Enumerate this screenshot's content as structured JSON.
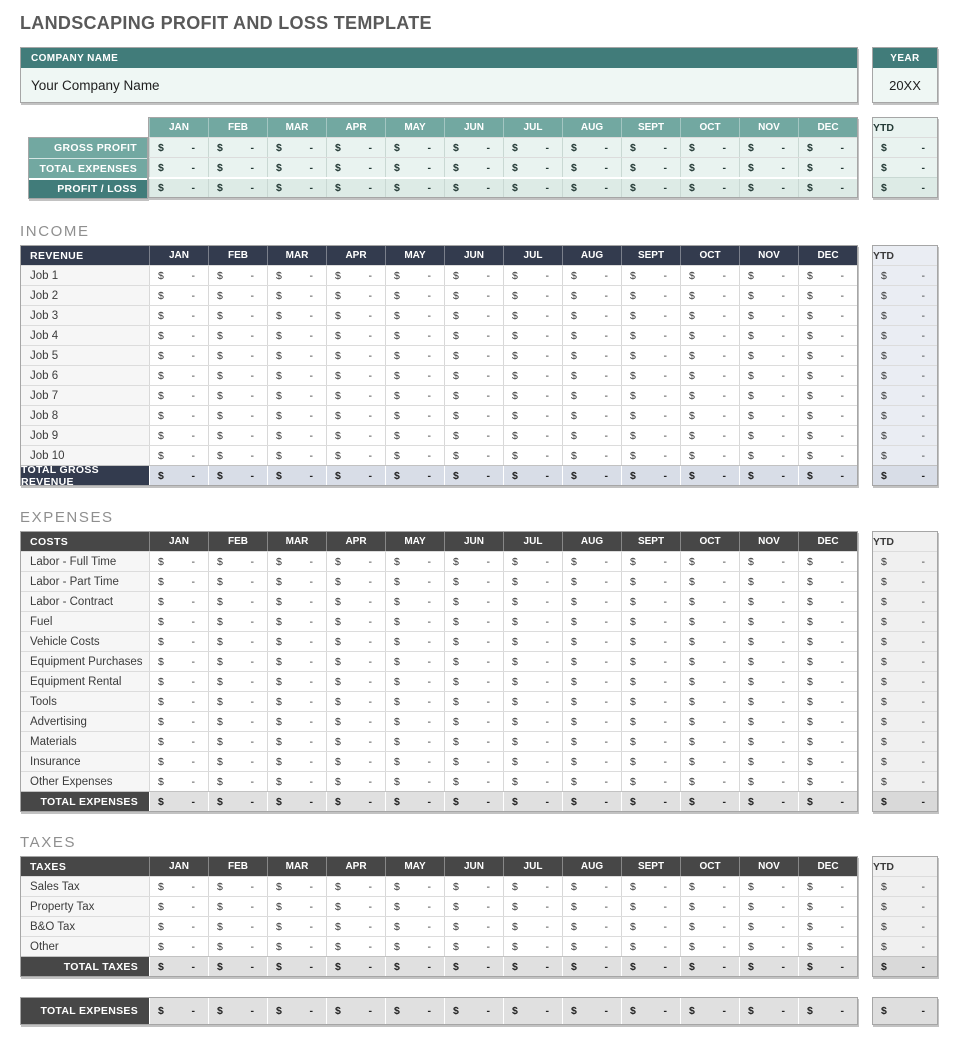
{
  "title": "LANDSCAPING PROFIT AND LOSS TEMPLATE",
  "company": {
    "label": "COMPANY NAME",
    "value": "Your Company Name"
  },
  "year": {
    "label": "YEAR",
    "value": "20XX"
  },
  "months": [
    "JAN",
    "FEB",
    "MAR",
    "APR",
    "MAY",
    "JUN",
    "JUL",
    "AUG",
    "SEPT",
    "OCT",
    "NOV",
    "DEC"
  ],
  "ytd_label": "YTD",
  "placeholder": {
    "currency": "$",
    "amount": "-"
  },
  "summary": {
    "rows": [
      {
        "label": "GROSS PROFIT",
        "variant": "mid"
      },
      {
        "label": "TOTAL EXPENSES",
        "variant": "mid"
      },
      {
        "label": "PROFIT / LOSS",
        "variant": "dark"
      }
    ]
  },
  "income": {
    "section_title": "INCOME",
    "header_label": "REVENUE",
    "rows": [
      "Job 1",
      "Job 2",
      "Job 3",
      "Job 4",
      "Job 5",
      "Job 6",
      "Job 7",
      "Job 8",
      "Job 9",
      "Job 10"
    ],
    "total_label": "TOTAL GROSS REVENUE",
    "theme": "navy"
  },
  "expenses": {
    "section_title": "EXPENSES",
    "header_label": "COSTS",
    "rows": [
      "Labor - Full Time",
      "Labor - Part Time",
      "Labor - Contract",
      "Fuel",
      "Vehicle Costs",
      "Equipment Purchases",
      "Equipment Rental",
      "Tools",
      "Advertising",
      "Materials",
      "Insurance",
      "Other Expenses"
    ],
    "total_label": "TOTAL EXPENSES",
    "theme": "gray"
  },
  "taxes": {
    "section_title": "TAXES",
    "header_label": "TAXES",
    "rows": [
      "Sales Tax",
      "Property Tax",
      "B&O Tax",
      "Other"
    ],
    "total_label": "TOTAL TAXES",
    "theme": "gray"
  },
  "footer": {
    "total_label": "TOTAL EXPENSES"
  },
  "colors": {
    "teal_dark": "#417C7A",
    "teal_mid": "#72A8A1",
    "mint_cell": "#E9F3F0",
    "mint_cell_dark": "#DDEBE6",
    "navy_header": "#333B4E",
    "navy_total_bg": "#D8DDE7",
    "navy_ytd_bg": "#EAEDF3",
    "gray_header": "#474747",
    "gray_total_bg": "#E0E0E0",
    "gray_ytd_bg": "#F0F0F0",
    "title_text": "#595959",
    "section_heading_text": "#8F8F8F"
  }
}
